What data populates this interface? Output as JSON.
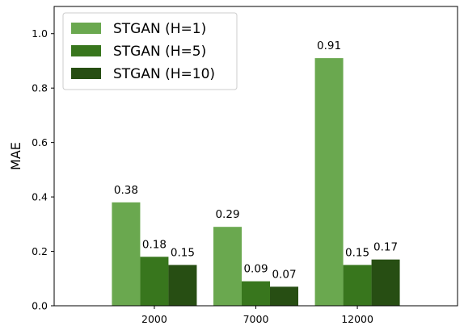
{
  "chart_data": {
    "type": "bar",
    "title": "",
    "xlabel": "",
    "ylabel": "MAE",
    "categories": [
      "2000",
      "7000",
      "12000"
    ],
    "series": [
      {
        "name": "STGAN (H=1)",
        "color": "#6aa84f",
        "values": [
          0.38,
          0.29,
          0.91
        ],
        "labels": [
          "0.38",
          "0.29",
          "0.91"
        ]
      },
      {
        "name": "STGAN (H=5)",
        "color": "#38761d",
        "values": [
          0.18,
          0.09,
          0.15
        ],
        "labels": [
          "0.18",
          "0.09",
          "0.15"
        ]
      },
      {
        "name": "STGAN (H=10)",
        "color": "#274e13",
        "values": [
          0.15,
          0.07,
          0.17
        ],
        "labels": [
          "0.15",
          "0.07",
          "0.17"
        ]
      }
    ],
    "ylim": [
      0,
      1.1
    ],
    "yticks": [
      0.0,
      0.2,
      0.4,
      0.6,
      0.8,
      1.0
    ],
    "ytick_labels": [
      "0.0",
      "0.2",
      "0.4",
      "0.6",
      "0.8",
      "1.0"
    ],
    "legend_position": "top-left",
    "grid": false
  }
}
